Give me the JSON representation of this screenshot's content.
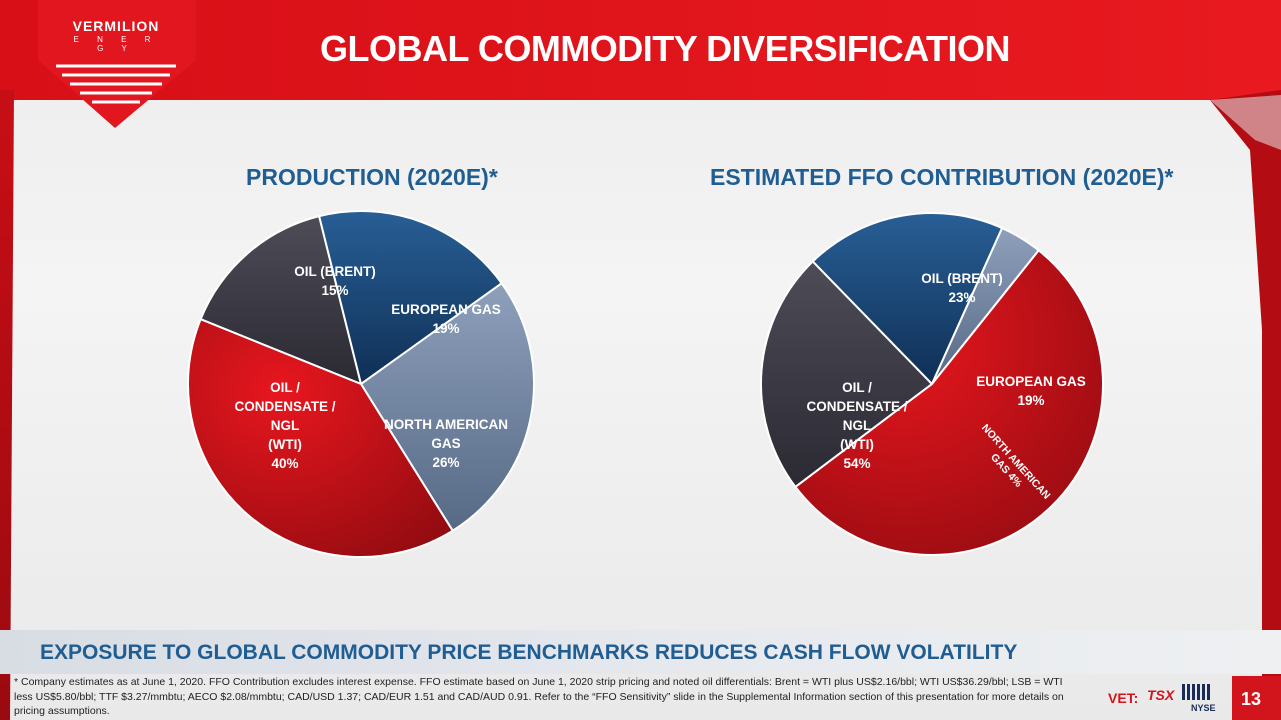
{
  "header": {
    "logo_name": "VERMILION",
    "logo_sub": "E N E R G Y",
    "title": "GLOBAL COMMODITY DIVERSIFICATION",
    "brand_color": "#d2151c"
  },
  "chart_data": [
    {
      "type": "pie",
      "title": "PRODUCTION (2020E)*",
      "slices": [
        {
          "label": "OIL (BRENT)",
          "value": 15,
          "color": "#44434e"
        },
        {
          "label": "EUROPEAN GAS",
          "value": 19,
          "color": "#1e4f7e"
        },
        {
          "label": "NORTH AMERICAN GAS",
          "value": 26,
          "color": "#7b8fab"
        },
        {
          "label": "OIL / CONDENSATE / NGL (WTI)",
          "value": 40,
          "color": "#c8121b"
        }
      ]
    },
    {
      "type": "pie",
      "title": "ESTIMATED FFO CONTRIBUTION (2020E)*",
      "slices": [
        {
          "label": "OIL (BRENT)",
          "value": 23,
          "color": "#44434e"
        },
        {
          "label": "EUROPEAN GAS",
          "value": 19,
          "color": "#1e4f7e"
        },
        {
          "label": "NORTH AMERICAN GAS",
          "value": 4,
          "color": "#7b8fab"
        },
        {
          "label": "OIL / CONDENSATE / NGL (WTI)",
          "value": 54,
          "color": "#c8121b"
        }
      ]
    }
  ],
  "labels": {
    "p1": {
      "brent": [
        "OIL (BRENT)",
        "15%"
      ],
      "eu": [
        "EUROPEAN GAS",
        "19%"
      ],
      "na": [
        "NORTH AMERICAN",
        "GAS",
        "26%"
      ],
      "wti": [
        "OIL /",
        "CONDENSATE /",
        "NGL",
        "(WTI)",
        "40%"
      ]
    },
    "p2": {
      "brent": [
        "OIL (BRENT)",
        "23%"
      ],
      "eu": [
        "EUROPEAN GAS",
        "19%"
      ],
      "na": [
        "NORTH AMERICAN",
        "GAS 4%"
      ],
      "wti": [
        "OIL /",
        "CONDENSATE /",
        "NGL",
        "(WTI)",
        "54%"
      ]
    }
  },
  "banner": "EXPOSURE TO GLOBAL COMMODITY PRICE BENCHMARKS REDUCES CASH FLOW VOLATILITY",
  "footnote": "* Company estimates as at June 1, 2020.  FFO Contribution excludes interest expense. FFO estimate based on June 1, 2020 strip pricing and noted oil differentials: Brent = WTI plus US$2.16/bbl; WTI US$36.29/bbl; LSB = WTI less US$5.80/bbl; TTF $3.27/mmbtu; AECO $2.08/mmbtu; CAD/USD 1.37; CAD/EUR 1.51 and CAD/AUD 0.91. Refer to the “FFO Sensitivity” slide in the Supplemental Information section of this presentation for more details on pricing assumptions.",
  "footer": {
    "vet": "VET:",
    "tsx": "TSX",
    "nyse": "NYSE",
    "page": "13"
  }
}
